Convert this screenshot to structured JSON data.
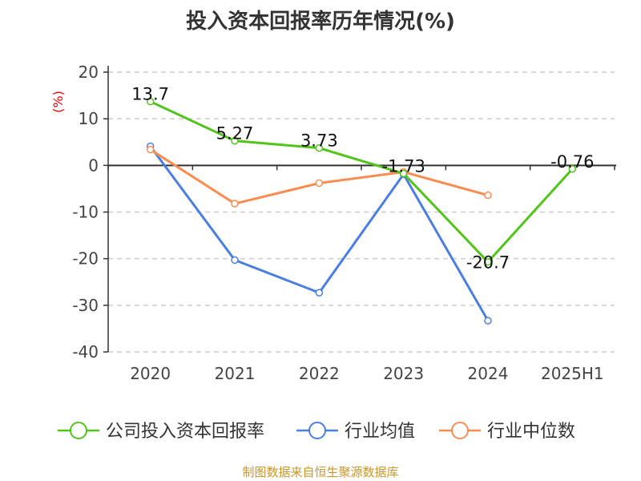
{
  "chart_data": {
    "type": "line",
    "title": "投入资本回报率历年情况(%)",
    "ylabel": "(%)",
    "xlabel": "",
    "categories": [
      "2020",
      "2021",
      "2022",
      "2023",
      "2024",
      "2025H1"
    ],
    "ylim": [
      -40,
      20
    ],
    "yticks": [
      20,
      10,
      0,
      -10,
      -20,
      -30,
      -40
    ],
    "grid": true,
    "legend_position": "bottom",
    "series": [
      {
        "name": "公司投入资本回报率",
        "color": "#52c41a",
        "values": [
          13.7,
          5.27,
          3.73,
          -1.73,
          -20.7,
          -0.76
        ],
        "labels": [
          "13.7",
          "5.27",
          "3.73",
          "-1.73",
          "-20.7",
          "-0.76"
        ]
      },
      {
        "name": "行业均值",
        "color": "#4a7fe0",
        "values": [
          4.1,
          -20.3,
          -27.3,
          -1.9,
          -33.3,
          null
        ]
      },
      {
        "name": "行业中位数",
        "color": "#fa8c50",
        "values": [
          3.4,
          -8.2,
          -3.8,
          -1.4,
          -6.4,
          null
        ]
      }
    ]
  },
  "source": "制图数据来自恒生聚源数据库"
}
